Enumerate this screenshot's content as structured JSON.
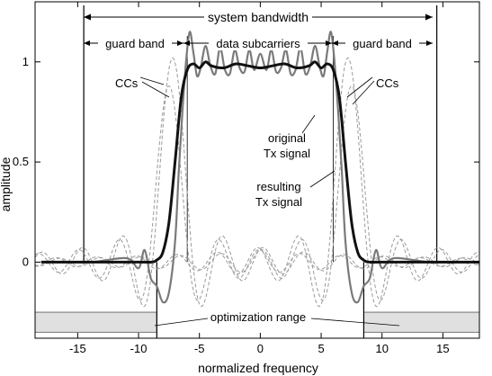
{
  "chart_data": {
    "type": "line",
    "xlabel": "normalized frequency",
    "ylabel": "amplitude",
    "xlim": [
      -18.5,
      18.0
    ],
    "ylim": [
      -0.38,
      1.3
    ],
    "x_ticks": [
      -15,
      -10,
      -5,
      0,
      5,
      10,
      15
    ],
    "y_ticks": [
      0,
      0.5,
      1
    ],
    "x_tick_labels": [
      "-15",
      "-10",
      "-5",
      "0",
      "5",
      "10",
      "15"
    ],
    "y_tick_labels": [
      "0",
      "0.5",
      "1"
    ],
    "grid": false,
    "colors": {
      "original": "#7a7a7a",
      "resulting": "#111111",
      "ccs": "#9a9a9a",
      "optimization_fill": "#e0e0e0"
    },
    "annotations": {
      "system_bandwidth": "system bandwidth",
      "guard_band_left": "guard band",
      "data_subcarriers": "data subcarriers",
      "guard_band_right": "guard band",
      "ccs_left": "CCs",
      "ccs_right": "CCs",
      "original_label": [
        "original",
        "Tx signal"
      ],
      "resulting_label": [
        "resulting",
        "Tx signal"
      ],
      "optimization_range": "optimization range"
    },
    "regions": {
      "system_bandwidth": [
        -14.5,
        14.5
      ],
      "data_band": [
        -6,
        6
      ],
      "optimization_band": [
        [
          -18.5,
          -8.5
        ],
        [
          8.5,
          18.0
        ]
      ],
      "optimization_bottom": -0.35,
      "optimization_top": -0.25
    },
    "series": [
      {
        "name": "original Tx signal",
        "x": [
          -18,
          -14,
          -11,
          -10,
          -9.5,
          -9,
          -8.5,
          -8,
          -7.5,
          -7,
          -6.7,
          -6.4,
          -6.1,
          -5.8,
          -5.5,
          -5.2,
          -4.9,
          -4.5,
          -4.1,
          -3.7,
          -3.3,
          -2.9,
          -2.5,
          -2.1,
          -1.7,
          -1.3,
          -0.9,
          -0.5,
          0,
          0.5,
          0.9,
          1.3,
          1.7,
          2.1,
          2.5,
          2.9,
          3.3,
          3.7,
          4.1,
          4.5,
          4.9,
          5.2,
          5.5,
          5.8,
          6.1,
          6.4,
          6.7,
          7,
          7.5,
          8,
          8.5,
          9,
          9.5,
          10,
          11,
          14,
          18
        ],
        "y": [
          0,
          0,
          0.02,
          -0.03,
          0.06,
          -0.08,
          -0.12,
          -0.2,
          -0.15,
          0.1,
          0.45,
          0.75,
          1.0,
          1.15,
          1.05,
          0.93,
          0.97,
          1.08,
          0.98,
          0.94,
          1.07,
          0.96,
          0.94,
          1.06,
          0.97,
          0.95,
          1.06,
          0.96,
          1.04,
          0.96,
          1.06,
          0.95,
          0.97,
          1.06,
          0.94,
          0.96,
          1.07,
          0.94,
          0.98,
          1.08,
          0.97,
          0.93,
          1.05,
          1.15,
          1.0,
          0.75,
          0.45,
          0.1,
          -0.15,
          -0.2,
          -0.12,
          -0.08,
          0.06,
          -0.03,
          0.02,
          0,
          0
        ]
      },
      {
        "name": "resulting Tx signal",
        "x": [
          -18,
          -10,
          -9,
          -8.5,
          -8,
          -7.5,
          -7,
          -6.5,
          -6,
          -5.5,
          -5,
          -4.5,
          -4,
          -3,
          -2,
          -1,
          0,
          1,
          2,
          3,
          4,
          4.5,
          5,
          5.5,
          6,
          6.5,
          7,
          7.5,
          8,
          8.5,
          9,
          10,
          18
        ],
        "y": [
          0,
          0,
          0,
          0.01,
          0.05,
          0.2,
          0.5,
          0.82,
          0.96,
          0.99,
          0.97,
          1.0,
          0.98,
          0.97,
          0.99,
          0.98,
          0.97,
          0.98,
          0.99,
          0.97,
          0.98,
          1.0,
          0.97,
          0.99,
          0.96,
          0.82,
          0.5,
          0.2,
          0.05,
          0.01,
          0,
          0,
          0
        ]
      },
      {
        "name": "CCs",
        "groups": [
          {
            "center": -7.2,
            "peak": 1.02
          },
          {
            "center": -7.5,
            "peak": 0.88
          },
          {
            "center": 7.2,
            "peak": 1.02
          },
          {
            "center": 7.5,
            "peak": 0.88
          }
        ]
      }
    ]
  }
}
